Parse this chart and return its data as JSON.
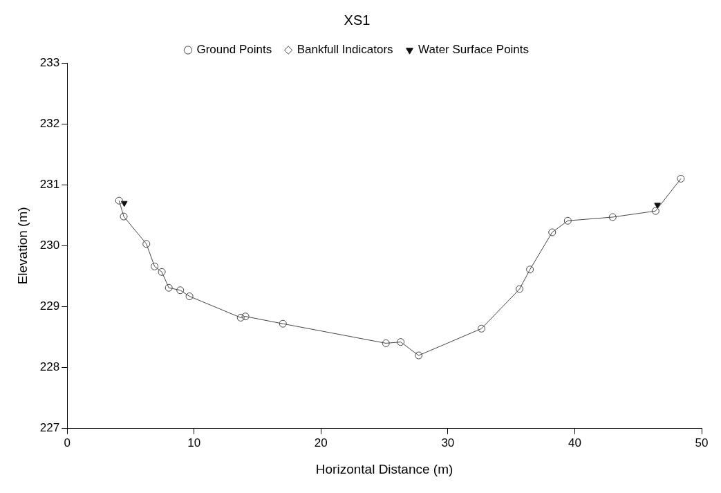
{
  "chart_data": {
    "type": "line",
    "title": "XS1",
    "xlabel": "Horizontal Distance (m)",
    "ylabel": "Elevation (m)",
    "xlim": [
      0,
      50
    ],
    "xticks": [
      0,
      10,
      20,
      30,
      40,
      50
    ],
    "ylim": [
      227,
      233
    ],
    "yticks": [
      227,
      228,
      229,
      230,
      231,
      232,
      233
    ],
    "grid": false,
    "legend": "top",
    "series": [
      {
        "name": "Ground Points",
        "marker": "circle",
        "color": "#444444",
        "x": [
          4.09,
          4.46,
          6.24,
          6.89,
          7.46,
          8.01,
          8.91,
          9.64,
          13.68,
          14.05,
          17.0,
          25.12,
          26.28,
          27.7,
          32.65,
          35.65,
          36.47,
          38.22,
          39.45,
          42.99,
          46.37,
          48.36
        ],
        "values": [
          230.74,
          230.48,
          230.03,
          229.66,
          229.57,
          229.31,
          229.27,
          229.17,
          228.82,
          228.84,
          228.72,
          228.4,
          228.42,
          228.2,
          228.64,
          229.29,
          229.61,
          230.22,
          230.41,
          230.47,
          230.57,
          231.1
        ]
      },
      {
        "name": "Bankfull Indicators",
        "marker": "diamond",
        "color": "#444444"
      },
      {
        "name": "Water Surface Points",
        "type": "scatter",
        "marker": "triangle",
        "color": "#111111",
        "x": [
          4.5,
          46.52
        ],
        "values": [
          230.7,
          230.67
        ]
      }
    ]
  }
}
